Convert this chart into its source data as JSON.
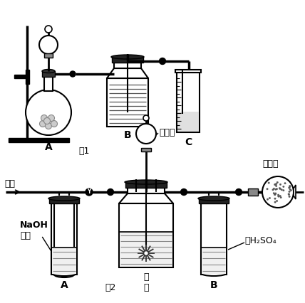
{
  "fig_label1": "图1",
  "fig_label2": "图2",
  "label_A1": "A",
  "label_B1": "B",
  "label_C1": "C",
  "label_A2": "A",
  "label_B2": "B",
  "label_kongqi": "空气",
  "label_xiliusuan": "稀硫酸",
  "label_jianshuihua": "碱石灰",
  "label_NaOH": "NaOH\n溶液",
  "label_yangpin": "样\n品",
  "label_nong": "浓H₂SO₄",
  "line_color": "#000000",
  "bg_color": "#ffffff"
}
